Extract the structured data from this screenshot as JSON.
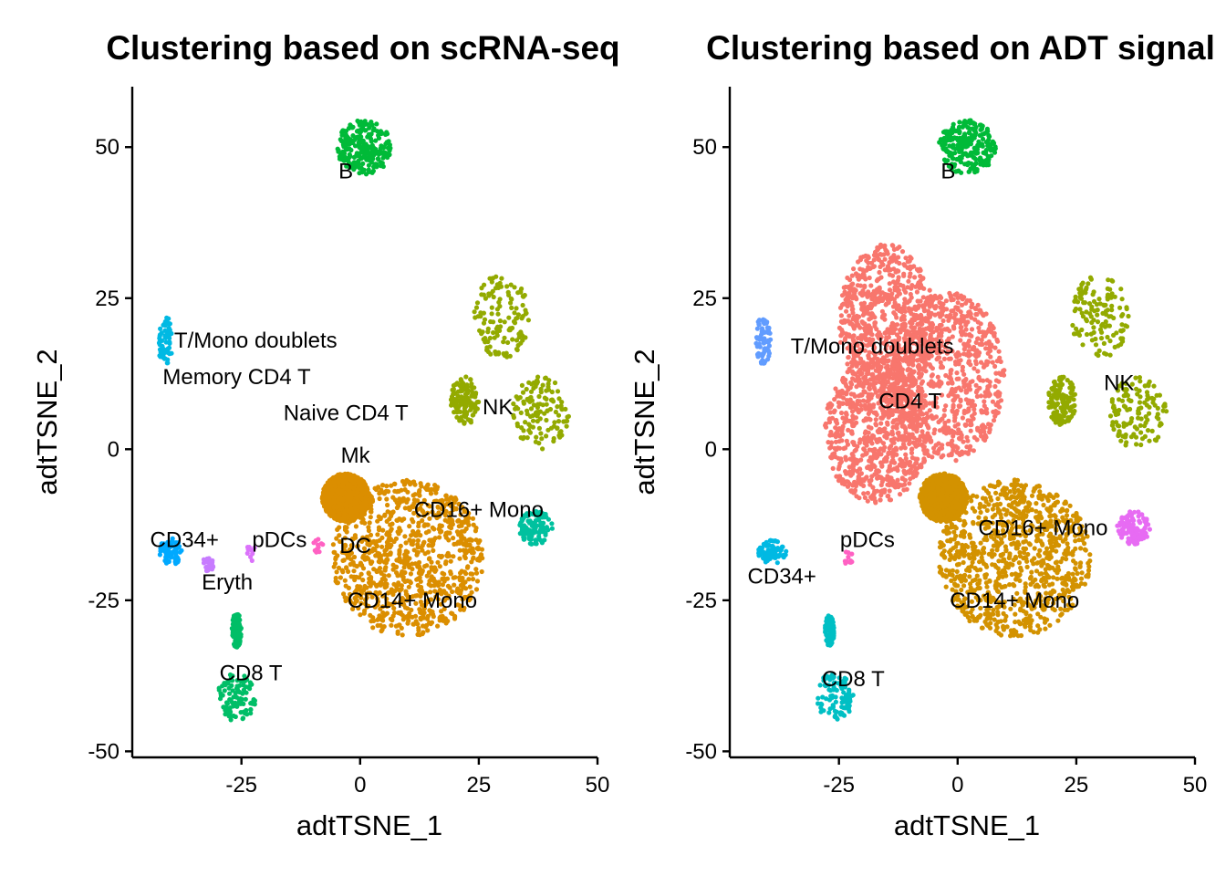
{
  "chart_data": [
    {
      "type": "scatter",
      "title": "Clustering based on scRNA-seq",
      "xlabel": "adtTSNE_1",
      "ylabel": "adtTSNE_2",
      "xlim": [
        -48,
        50
      ],
      "ylim": [
        -51,
        60
      ],
      "xticks": [
        -25,
        0,
        25,
        50
      ],
      "yticks": [
        -50,
        -25,
        0,
        25,
        50
      ],
      "tick_labels_x": [
        "-25",
        "0",
        "25",
        "50"
      ],
      "tick_labels_y": [
        "-50",
        "-25",
        "0",
        "25",
        "50"
      ],
      "legend": "none",
      "grid": false,
      "clusters": [
        {
          "name": "B",
          "label_x": -3,
          "label_y": 46,
          "color": "#00BA38",
          "regions": [
            [
              1,
              50,
              6,
              4.5
            ]
          ],
          "n": 240
        },
        {
          "name": "NK",
          "label_x": 29,
          "label_y": 7,
          "color": "#93AA00",
          "regions": [
            [
              30,
              22,
              6,
              7
            ],
            [
              38,
              6,
              6,
              6
            ],
            [
              22,
              8,
              3,
              4
            ]
          ],
          "n": 380
        },
        {
          "name": "Naive CD4 T",
          "label_x": -3,
          "label_y": 6,
          "color": "#D39200",
          "regions": [
            [
              -8,
              12,
              12,
              21
            ]
          ],
          "n": 0
        },
        {
          "name": "Memory CD4 T",
          "label_x": -26,
          "label_y": 12,
          "color": "#F8766D",
          "regions": [
            [
              -15,
              20,
              10,
              13
            ],
            [
              -19,
              3,
              11,
              12
            ]
          ],
          "n": 0
        },
        {
          "name": "T/Mono doublets",
          "label_x": -22,
          "label_y": 18,
          "color": "#00B9E3",
          "regions": [
            [
              -41,
              18,
              1.6,
              4
            ]
          ],
          "n": 70
        },
        {
          "name": "Mk",
          "label_x": -1,
          "label_y": -1,
          "color": "#619CFF",
          "regions": [],
          "n": 0
        },
        {
          "name": "CD16+ Mono",
          "label_x": 25,
          "label_y": -10,
          "color": "#00C19F",
          "regions": [
            [
              37,
              -13,
              3.5,
              2.8
            ]
          ],
          "n": 110
        },
        {
          "name": "CD14+ Mono",
          "label_x": 11,
          "label_y": -25,
          "color": "#DB8E00",
          "regions": [
            [
              10,
              -18,
              16,
              13
            ],
            [
              -3,
              -8,
              5,
              4
            ]
          ],
          "n": 1900
        },
        {
          "name": "DC",
          "label_x": -1,
          "label_y": -16,
          "color": "#FF61C3",
          "regions": [
            [
              -9,
              -16,
              1.2,
              1.2
            ]
          ],
          "n": 12
        },
        {
          "name": "pDCs",
          "label_x": -17,
          "label_y": -15,
          "color": "#DB72FB",
          "regions": [
            [
              -23,
              -17,
              1.0,
              1.5
            ]
          ],
          "n": 10
        },
        {
          "name": "CD34+",
          "label_x": -37,
          "label_y": -15,
          "color": "#00A9FF",
          "regions": [
            [
              -40,
              -17,
              2.5,
              2.3
            ]
          ],
          "n": 70
        },
        {
          "name": "Eryth",
          "label_x": -28,
          "label_y": -22,
          "color": "#C77CFF",
          "regions": [
            [
              -32,
              -19,
              1.3,
              1.2
            ]
          ],
          "n": 22
        },
        {
          "name": "CD8 T",
          "label_x": -23,
          "label_y": -37,
          "color": "#00BE67",
          "regions": [
            [
              -26,
              -41,
              4,
              4
            ],
            [
              -26,
              -30,
              1.0,
              3
            ]
          ],
          "n": 200
        }
      ]
    },
    {
      "type": "scatter",
      "title": "Clustering based on ADT signal",
      "xlabel": "adtTSNE_1",
      "ylabel": "adtTSNE_2",
      "xlim": [
        -48,
        50
      ],
      "ylim": [
        -51,
        60
      ],
      "xticks": [
        -25,
        0,
        25,
        50
      ],
      "yticks": [
        -50,
        -25,
        0,
        25,
        50
      ],
      "tick_labels_x": [
        "-25",
        "0",
        "25",
        "50"
      ],
      "tick_labels_y": [
        "-50",
        "-25",
        "0",
        "25",
        "50"
      ],
      "legend": "none",
      "grid": false,
      "clusters": [
        {
          "name": "B",
          "label_x": -2,
          "label_y": 46,
          "color": "#00BA38",
          "regions": [
            [
              2,
              50,
              6,
              4.5
            ]
          ],
          "n": 240
        },
        {
          "name": "NK",
          "label_x": 34,
          "label_y": 11,
          "color": "#93AA00",
          "regions": [
            [
              30,
              22,
              6,
              7
            ],
            [
              38,
              6,
              6,
              6
            ],
            [
              22,
              8,
              3,
              4
            ]
          ],
          "n": 380
        },
        {
          "name": "T/Mono doublets",
          "label_x": -18,
          "label_y": 17,
          "color": "#619CFF",
          "regions": [
            [
              -41,
              18,
              1.6,
              4
            ]
          ],
          "n": 70
        },
        {
          "name": "CD4 T",
          "label_x": -10,
          "label_y": 8,
          "color": "#F8766D",
          "regions": [
            [
              -15,
              21,
              10,
              13
            ],
            [
              -17,
              3,
              11,
              12
            ],
            [
              -2,
              12,
              12,
              14
            ]
          ],
          "n": 2300
        },
        {
          "name": "CD16+ Mono",
          "label_x": 18,
          "label_y": -13,
          "color": "#E76BF3",
          "regions": [
            [
              37,
              -13,
              3.5,
              2.8
            ]
          ],
          "n": 110
        },
        {
          "name": "CD14+ Mono",
          "label_x": 12,
          "label_y": -25,
          "color": "#D39200",
          "regions": [
            [
              12,
              -18,
              16,
              13
            ],
            [
              -3,
              -8,
              5,
              4
            ]
          ],
          "n": 1900
        },
        {
          "name": "pDCs",
          "label_x": -19,
          "label_y": -15,
          "color": "#FF61C3",
          "regions": [
            [
              -23,
              -18,
              1.0,
              1.3
            ]
          ],
          "n": 12
        },
        {
          "name": "CD34+",
          "label_x": -37,
          "label_y": -21,
          "color": "#00B9E3",
          "regions": [
            [
              -39,
              -17,
              3,
              2
            ]
          ],
          "n": 80
        },
        {
          "name": "CD8 T",
          "label_x": -22,
          "label_y": -38,
          "color": "#00BFC4",
          "regions": [
            [
              -26,
              -41,
              4,
              4
            ],
            [
              -27,
              -30,
              1.0,
              2.5
            ]
          ],
          "n": 200
        }
      ]
    }
  ]
}
